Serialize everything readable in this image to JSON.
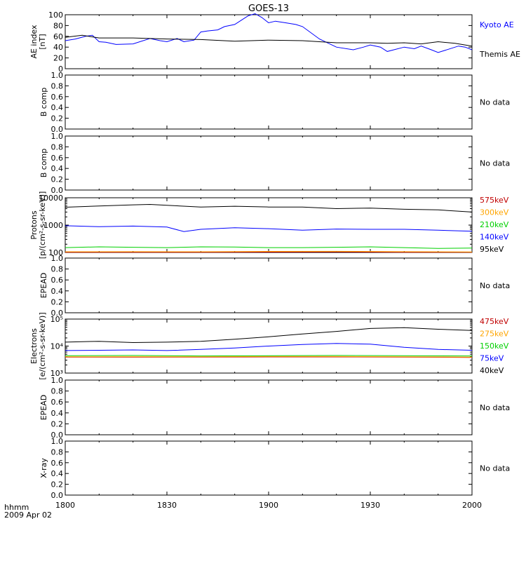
{
  "title": "GOES-13",
  "footer": {
    "line1": "hhmm",
    "line2": "2009 Apr 02"
  },
  "x_axis": {
    "ticks": [
      "1800",
      "1830",
      "1900",
      "1930",
      "2000"
    ],
    "tick_minutes": [
      0,
      30,
      60,
      90,
      120
    ],
    "range_minutes": [
      0,
      120
    ]
  },
  "no_data_text": "No data",
  "chart_data": [
    {
      "type": "line",
      "panel": "ae",
      "ylabel": [
        "AE index",
        "[nT]"
      ],
      "ylim": [
        0,
        100
      ],
      "ticks": [
        "0",
        "20",
        "40",
        "60",
        "80",
        "100"
      ],
      "tick_values": [
        0,
        20,
        40,
        60,
        80,
        100
      ],
      "series": [
        {
          "name": "Kyoto AE",
          "color": "#0000ff",
          "x": [
            0,
            3,
            6,
            8,
            10,
            12,
            15,
            20,
            25,
            28,
            30,
            33,
            35,
            38,
            40,
            42,
            45,
            47,
            50,
            52,
            54,
            56,
            58,
            60,
            62,
            65,
            68,
            70,
            75,
            80,
            85,
            88,
            90,
            93,
            95,
            100,
            103,
            105,
            108,
            110,
            113,
            116,
            118,
            120
          ],
          "y": [
            52,
            55,
            60,
            62,
            50,
            49,
            45,
            46,
            56,
            52,
            50,
            56,
            50,
            53,
            68,
            70,
            72,
            78,
            82,
            90,
            98,
            102,
            95,
            85,
            88,
            85,
            82,
            78,
            55,
            40,
            35,
            40,
            44,
            40,
            32,
            40,
            37,
            42,
            35,
            30,
            36,
            42,
            40,
            35
          ]
        },
        {
          "name": "Themis AE",
          "color": "#000000",
          "x": [
            0,
            5,
            10,
            20,
            30,
            40,
            50,
            60,
            70,
            80,
            90,
            95,
            100,
            105,
            110,
            115,
            120
          ],
          "y": [
            58,
            62,
            57,
            57,
            55,
            54,
            51,
            53,
            52,
            48,
            48,
            47,
            48,
            46,
            50,
            47,
            42
          ]
        }
      ]
    },
    {
      "type": "line",
      "panel": "empty",
      "ylabel": [
        "B comp"
      ],
      "ylim": [
        0,
        1
      ],
      "ticks": [
        "0.0",
        "0.2",
        "0.4",
        "0.6",
        "0.8",
        "1.0"
      ],
      "tick_values": [
        0,
        0.2,
        0.4,
        0.6,
        0.8,
        1.0
      ]
    },
    {
      "type": "line",
      "panel": "empty",
      "ylabel": [
        "B comp"
      ],
      "ylim": [
        0,
        1
      ],
      "ticks": [
        "0.0",
        "0.2",
        "0.4",
        "0.6",
        "0.8",
        "1.0"
      ],
      "tick_values": [
        0,
        0.2,
        0.4,
        0.6,
        0.8,
        1.0
      ]
    },
    {
      "type": "line",
      "panel": "protons",
      "log": true,
      "ylabel": [
        "Protons",
        "[p/(cm²-s-sr-keV)]"
      ],
      "ylim": [
        100,
        10000
      ],
      "ticks": [
        "100",
        "1000",
        "10000"
      ],
      "tick_values": [
        100,
        1000,
        10000
      ],
      "series": [
        {
          "name": "575keV",
          "color": "#c00000",
          "x": [
            0,
            20,
            40,
            60,
            80,
            100,
            120
          ],
          "y": [
            101,
            102,
            101,
            103,
            104,
            102,
            101
          ]
        },
        {
          "name": "300keV",
          "color": "#ffa500",
          "x": [
            0,
            20,
            40,
            60,
            80,
            100,
            120
          ],
          "y": [
            106,
            107,
            106,
            109,
            110,
            107,
            105
          ]
        },
        {
          "name": "210keV",
          "color": "#00d000",
          "x": [
            0,
            10,
            20,
            30,
            40,
            50,
            60,
            70,
            80,
            90,
            100,
            110,
            120
          ],
          "y": [
            150,
            160,
            155,
            150,
            160,
            158,
            150,
            150,
            155,
            160,
            150,
            140,
            145
          ]
        },
        {
          "name": "140keV",
          "color": "#0000ff",
          "x": [
            0,
            10,
            20,
            30,
            35,
            40,
            50,
            60,
            70,
            80,
            90,
            100,
            110,
            120
          ],
          "y": [
            950,
            880,
            920,
            850,
            580,
            700,
            800,
            740,
            650,
            720,
            700,
            700,
            650,
            600
          ]
        },
        {
          "name": "95keV",
          "color": "#000000",
          "x": [
            0,
            10,
            20,
            25,
            30,
            40,
            50,
            60,
            70,
            80,
            90,
            100,
            110,
            120
          ],
          "y": [
            4500,
            5000,
            5500,
            5700,
            5300,
            4600,
            4900,
            4600,
            4600,
            4000,
            4200,
            3800,
            3600,
            3000
          ]
        }
      ]
    },
    {
      "type": "line",
      "panel": "empty",
      "ylabel": [
        "EPEAD"
      ],
      "ylim": [
        0,
        1
      ],
      "ticks": [
        "0.0",
        "0.2",
        "0.4",
        "0.6",
        "0.8",
        "1.0"
      ],
      "tick_values": [
        0,
        0.2,
        0.4,
        0.6,
        0.8,
        1.0
      ]
    },
    {
      "type": "line",
      "panel": "electrons",
      "log": true,
      "ylabel": [
        "Electrons",
        "[e/(cm²-s-sr-keV)]"
      ],
      "ylim": [
        1000,
        100000
      ],
      "ticks": [
        "10³",
        "10⁴",
        "10⁵"
      ],
      "tick_values": [
        1000,
        10000,
        100000
      ],
      "series": [
        {
          "name": "475keV",
          "color": "#c00000",
          "x": [
            0,
            20,
            40,
            60,
            80,
            100,
            120
          ],
          "y": [
            3900,
            3900,
            3900,
            3950,
            3950,
            3900,
            3800
          ]
        },
        {
          "name": "275keV",
          "color": "#ffa500",
          "x": [
            0,
            20,
            40,
            60,
            80,
            100,
            120
          ],
          "y": [
            4000,
            4050,
            4000,
            4100,
            4100,
            4000,
            3900
          ]
        },
        {
          "name": "150keV",
          "color": "#00d000",
          "x": [
            0,
            20,
            40,
            60,
            80,
            100,
            120
          ],
          "y": [
            4400,
            4500,
            4300,
            4400,
            4500,
            4400,
            4300
          ]
        },
        {
          "name": "75keV",
          "color": "#0000ff",
          "x": [
            0,
            10,
            20,
            30,
            40,
            50,
            60,
            70,
            80,
            90,
            100,
            110,
            120
          ],
          "y": [
            6800,
            7000,
            7200,
            6800,
            7500,
            8500,
            10000,
            11500,
            12500,
            11800,
            9000,
            7500,
            7000
          ]
        },
        {
          "name": "40keV",
          "color": "#000000",
          "x": [
            0,
            10,
            20,
            30,
            40,
            50,
            60,
            70,
            80,
            90,
            100,
            110,
            120
          ],
          "y": [
            14000,
            15000,
            13500,
            14000,
            15000,
            18000,
            22000,
            28000,
            35000,
            45000,
            48000,
            42000,
            38000
          ]
        }
      ]
    },
    {
      "type": "line",
      "panel": "empty",
      "ylabel": [
        "EPEAD"
      ],
      "ylim": [
        0,
        1
      ],
      "ticks": [
        "0.0",
        "0.2",
        "0.4",
        "0.6",
        "0.8",
        "1.0"
      ],
      "tick_values": [
        0,
        0.2,
        0.4,
        0.6,
        0.8,
        1.0
      ]
    },
    {
      "type": "line",
      "panel": "empty",
      "ylabel": [
        "X-ray"
      ],
      "ylim": [
        0,
        1
      ],
      "ticks": [
        "0.0",
        "0.2",
        "0.4",
        "0.6",
        "0.8",
        "1.0"
      ],
      "tick_values": [
        0,
        0.2,
        0.4,
        0.6,
        0.8,
        1.0
      ]
    }
  ]
}
